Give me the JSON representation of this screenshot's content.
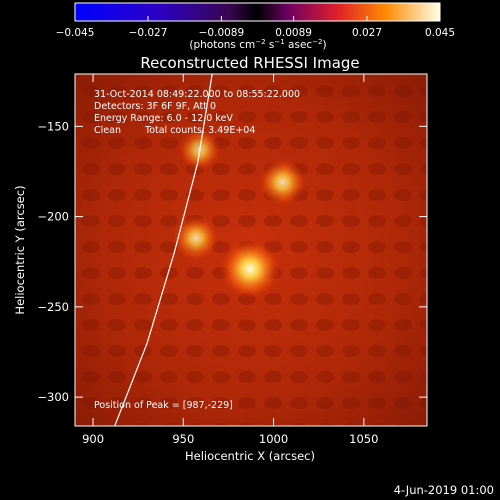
{
  "chart_data": {
    "type": "heatmap",
    "title": "Reconstructed RHESSI Image",
    "xlabel": "Heliocentric X (arcsec)",
    "ylabel": "Heliocentric Y (arcsec)",
    "xlim": [
      890,
      1085
    ],
    "ylim": [
      -316,
      -121
    ],
    "x_ticks": [
      900,
      950,
      1000,
      1050
    ],
    "y_ticks": [
      -150,
      -200,
      -250,
      -300
    ],
    "colorbar": {
      "range": [
        -0.045,
        0.045
      ],
      "tick_values": [
        -0.045,
        -0.027,
        -0.0089,
        0.0089,
        0.027,
        0.045
      ],
      "tick_labels": [
        "−0.045",
        "−0.027",
        "−0.0089",
        "0.0089",
        "0.027",
        "0.045"
      ],
      "label": "(photons cm",
      "label_sup1": "−2",
      "label_mid": " s",
      "label_sup2": "−1",
      "label_end": " asec",
      "label_sup3": "−2",
      "label_close": ")"
    },
    "sources": [
      {
        "x": 987,
        "y": -229,
        "relative_intensity": 1.0
      },
      {
        "x": 1005,
        "y": -181,
        "relative_intensity": 0.6
      },
      {
        "x": 957,
        "y": -212,
        "relative_intensity": 0.55
      },
      {
        "x": 959,
        "y": -163,
        "relative_intensity": 0.45
      }
    ],
    "limb_curve": [
      [
        912,
        -316
      ],
      [
        930,
        -270
      ],
      [
        945,
        -220
      ],
      [
        958,
        -170
      ],
      [
        966,
        -121
      ]
    ],
    "annotations": {
      "time_range": "31-Oct-2014 08:49:22.000 to 08:55:22.000",
      "detectors": "Detectors: 3F 6F 9F, Att 0",
      "energy": "Energy Range: 6.0 - 12.0 keV",
      "method": "Clean",
      "total_counts": "Total counts: 3.49E+04",
      "peak": "Position of Peak = [987,-229]"
    },
    "footer_date": "4-Jun-2019 01:00"
  }
}
